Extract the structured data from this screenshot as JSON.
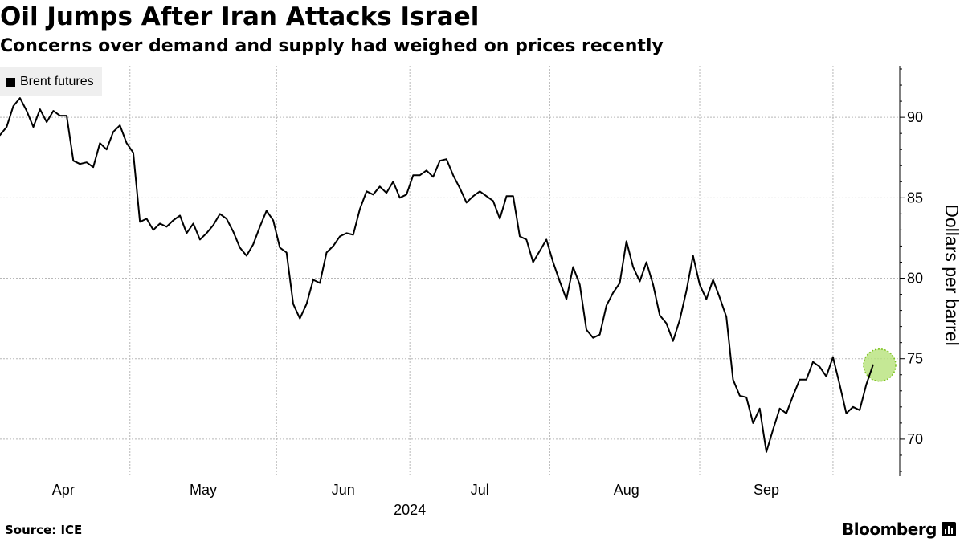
{
  "header": {
    "title": "Oil Jumps After Iran Attacks Israel",
    "subtitle": "Concerns over demand and supply had weighed on prices recently"
  },
  "footer": {
    "source": "Source: ICE",
    "brand": "Bloomberg"
  },
  "colors": {
    "line": "#000000",
    "highlight_fill": "#b6e27a",
    "highlight_stroke": "#7cc21f",
    "grid": "#b8b8b8",
    "legend_bg": "#efefef"
  },
  "chart_data": {
    "type": "line",
    "title": "Oil Jumps After Iran Attacks Israel",
    "subtitle": "Concerns over demand and supply had weighed on prices recently",
    "xlabel": "2024",
    "ylabel": "Dollars per barrel",
    "ylim": [
      67.7,
      93.2
    ],
    "yticks": [
      70,
      75,
      80,
      85,
      90
    ],
    "grid": true,
    "legend_position": "top-left",
    "x_unit": "trading days since Mar 26, 2024",
    "xlim": [
      0,
      132
    ],
    "x_month_labels": [
      {
        "label": "Apr",
        "x": 9.5
      },
      {
        "label": "May",
        "x": 30.5
      },
      {
        "label": "Jun",
        "x": 51.5
      },
      {
        "label": "Jul",
        "x": 72
      },
      {
        "label": "Aug",
        "x": 94
      },
      {
        "label": "Sep",
        "x": 115
      }
    ],
    "x_grid_lines": [
      19.5,
      41.5,
      61.5,
      82.5,
      105,
      125
    ],
    "x_year_label": {
      "label": "2024",
      "x": 61.5
    },
    "series": [
      {
        "name": "Brent futures",
        "values": [
          88.9,
          89.4,
          90.7,
          91.2,
          90.4,
          89.4,
          90.5,
          89.7,
          90.4,
          90.1,
          90.1,
          87.3,
          87.1,
          87.2,
          86.9,
          88.4,
          88.0,
          89.1,
          89.5,
          88.4,
          87.8,
          83.5,
          83.7,
          83.0,
          83.4,
          83.2,
          83.6,
          83.9,
          82.8,
          83.4,
          82.4,
          82.8,
          83.3,
          84.0,
          83.7,
          82.9,
          81.9,
          81.4,
          82.1,
          83.2,
          84.2,
          83.6,
          81.9,
          81.6,
          78.4,
          77.5,
          78.4,
          79.9,
          79.7,
          81.6,
          82.0,
          82.6,
          82.8,
          82.7,
          84.3,
          85.4,
          85.2,
          85.7,
          85.3,
          86.0,
          85.0,
          85.2,
          86.4,
          86.4,
          86.7,
          86.3,
          87.3,
          87.4,
          86.4,
          85.6,
          84.7,
          85.1,
          85.4,
          85.1,
          84.8,
          83.7,
          85.1,
          85.1,
          82.6,
          82.4,
          81.0,
          81.7,
          82.4,
          81.0,
          79.8,
          78.7,
          80.7,
          79.6,
          76.8,
          76.3,
          76.5,
          78.3,
          79.1,
          79.7,
          82.3,
          80.7,
          79.8,
          81.0,
          79.6,
          77.7,
          77.2,
          76.1,
          77.4,
          79.2,
          81.4,
          79.6,
          78.7,
          79.9,
          78.8,
          77.6,
          73.7,
          72.7,
          72.6,
          71.0,
          71.9,
          69.2,
          70.6,
          71.9,
          71.6,
          72.7,
          73.7,
          73.7,
          74.8,
          74.5,
          73.9,
          75.1,
          73.4,
          71.6,
          72.0,
          71.8,
          73.4,
          74.6
        ]
      }
    ],
    "highlight": {
      "label": "latest",
      "x": 132,
      "y": 74.6
    }
  }
}
